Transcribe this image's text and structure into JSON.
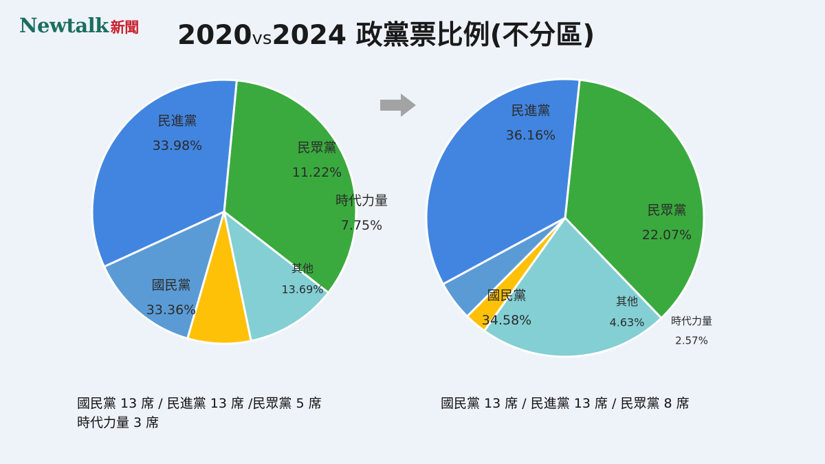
{
  "brand": {
    "name": "Newtalk",
    "cjk": "新聞"
  },
  "title": {
    "pre": "2020",
    "vs": "vs",
    "post": "2024 政黨票比例(不分區)"
  },
  "arrow_icon": "arrow-right-icon",
  "colors": {
    "民進黨": "#3aaa3e",
    "民眾黨": "#83cfd4",
    "時代力量": "#ffc107",
    "其他": "#5b9bd5",
    "國民黨": "#4285e0"
  },
  "chart_data": [
    {
      "type": "pie",
      "year_label": "2020",
      "slices": [
        {
          "label": "民進黨",
          "value": 33.98,
          "pct_label": "33.98%"
        },
        {
          "label": "民眾黨",
          "value": 11.22,
          "pct_label": "11.22%"
        },
        {
          "label": "時代力量",
          "value": 7.75,
          "pct_label": "7.75%"
        },
        {
          "label": "其他",
          "value": 13.69,
          "pct_label": "13.69%"
        },
        {
          "label": "國民黨",
          "value": 33.36,
          "pct_label": "33.36%"
        }
      ],
      "seats_note": [
        "國民黨 13 席 / 民進黨 13 席 /民眾黨  5 席",
        "時代力量 3 席"
      ]
    },
    {
      "type": "pie",
      "year_label": "2024",
      "slices": [
        {
          "label": "民進黨",
          "value": 36.16,
          "pct_label": "36.16%"
        },
        {
          "label": "民眾黨",
          "value": 22.07,
          "pct_label": "22.07%"
        },
        {
          "label": "時代力量",
          "value": 2.57,
          "pct_label": "2.57%"
        },
        {
          "label": "其他",
          "value": 4.63,
          "pct_label": "4.63%"
        },
        {
          "label": "國民黨",
          "value": 34.58,
          "pct_label": "34.58%"
        }
      ],
      "seats_note": [
        "國民黨 13 席 / 民進黨 13 席 / 民眾黨  8 席"
      ]
    }
  ]
}
